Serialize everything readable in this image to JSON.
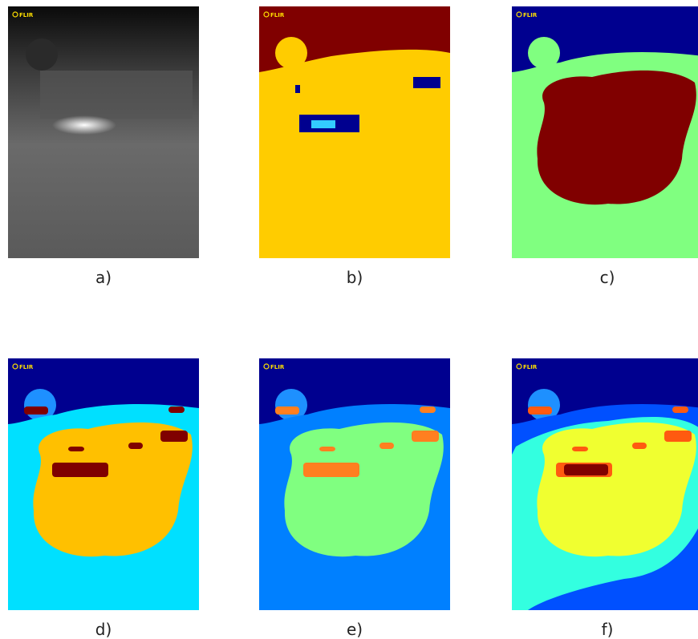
{
  "panels": [
    {
      "label": "a)",
      "logo": "FLIR"
    },
    {
      "label": "b)",
      "logo": "FLIR"
    },
    {
      "label": "c)",
      "logo": "FLIR"
    },
    {
      "label": "d)",
      "logo": "FLIR"
    },
    {
      "label": "e)",
      "logo": "FLIR"
    },
    {
      "label": "f)",
      "logo": "FLIR"
    }
  ]
}
